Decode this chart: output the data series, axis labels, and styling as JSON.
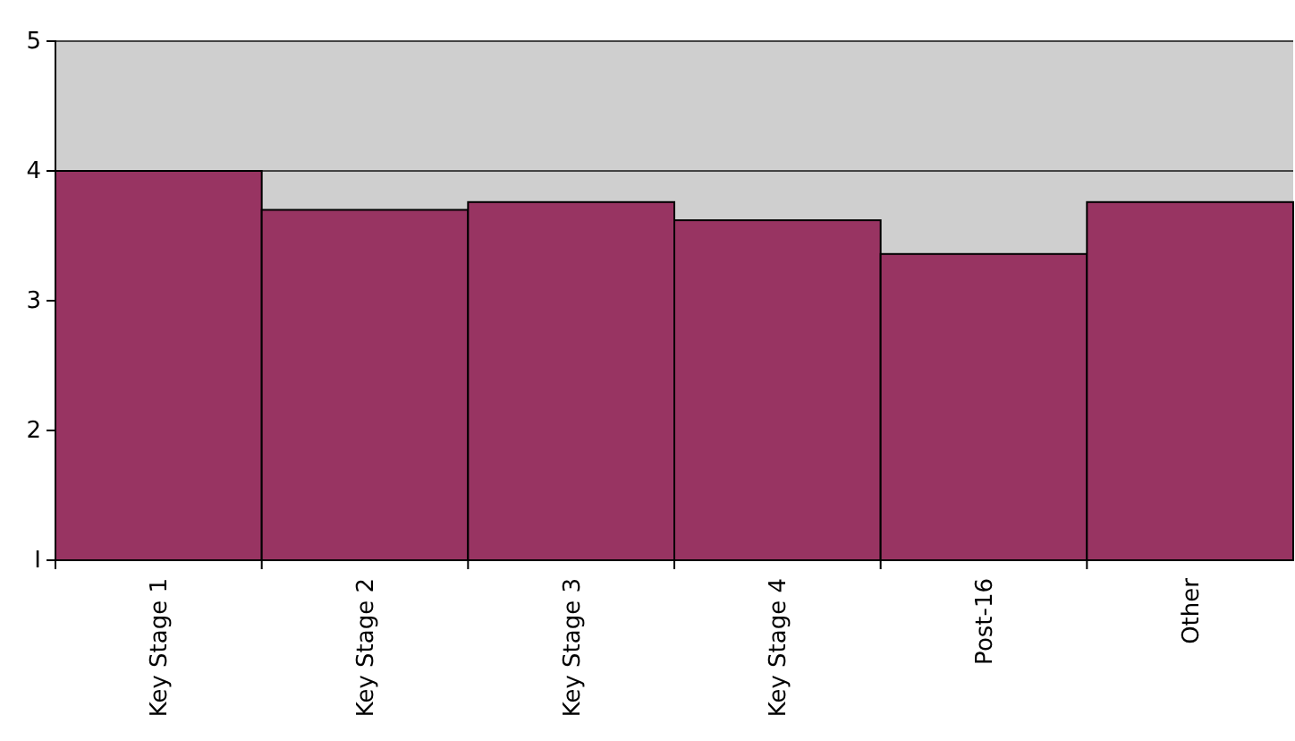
{
  "chart_data": {
    "type": "bar",
    "categories": [
      "Key Stage 1",
      "Key Stage 2",
      "Key Stage 3",
      "Key Stage 4",
      "Post-16",
      "Other"
    ],
    "values": [
      4.0,
      3.7,
      3.76,
      3.62,
      3.36,
      3.76
    ],
    "color": "#983462",
    "ylim": [
      1,
      5
    ],
    "yticks": [
      {
        "value": 1,
        "label": "I"
      },
      2,
      3,
      4,
      5
    ],
    "grid": "y"
  }
}
